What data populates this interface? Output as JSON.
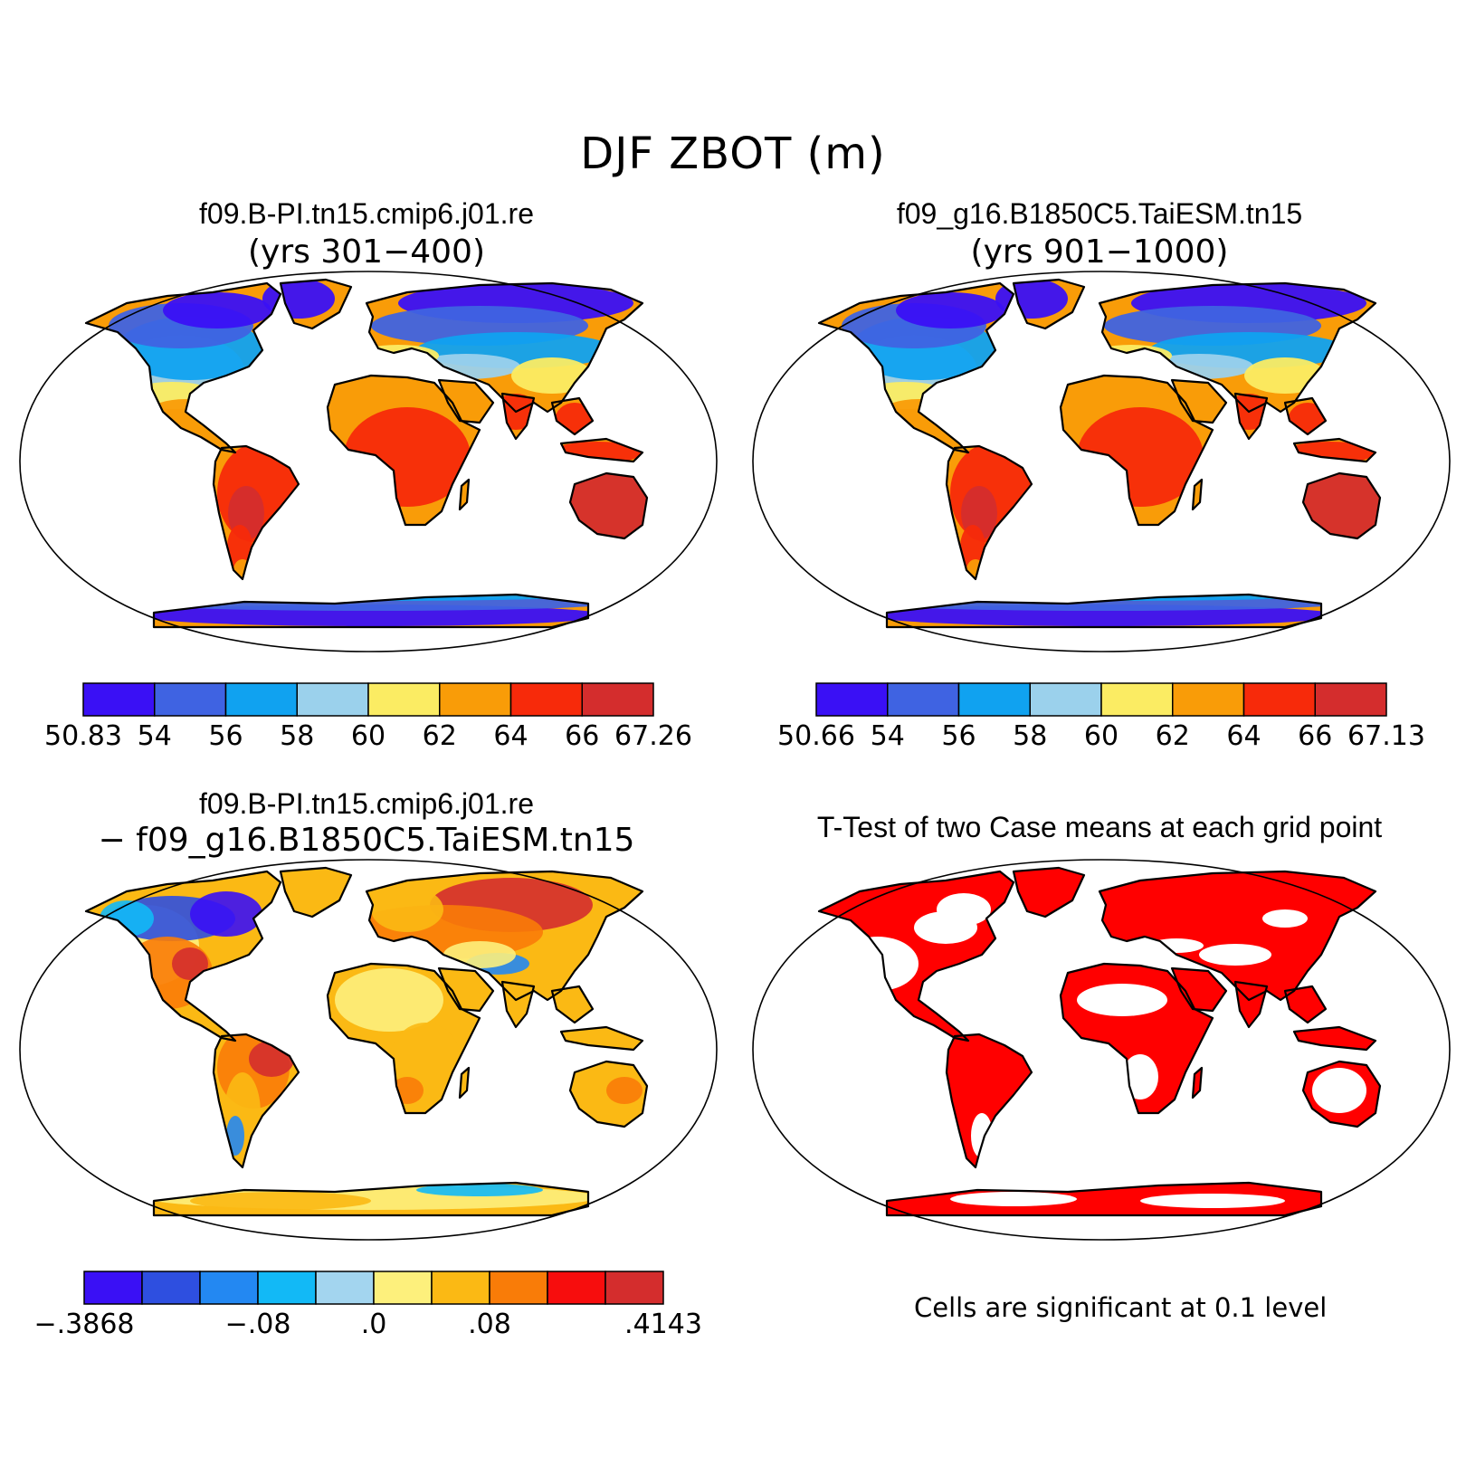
{
  "title": "DJF ZBOT (m)",
  "panels": [
    {
      "id": "case1",
      "title_line1": "f09.B-PI.tn15.cmip6.j01.re",
      "title_line2": "(yrs 301−400)",
      "colorbar": {
        "colors": [
          "#3a10f5",
          "#3f63e2",
          "#10a2f0",
          "#9bd1ec",
          "#fbec63",
          "#f99c08",
          "#f72a0a",
          "#d42d2d"
        ],
        "labels": [
          "50.83",
          "54",
          "56",
          "58",
          "60",
          "62",
          "64",
          "66",
          "67.26"
        ]
      }
    },
    {
      "id": "case2",
      "title_line1": "f09_g16.B1850C5.TaiESM.tn15",
      "title_line2": "(yrs 901−1000)",
      "colorbar": {
        "colors": [
          "#3a10f5",
          "#3f63e2",
          "#10a2f0",
          "#9bd1ec",
          "#fbec63",
          "#f99c08",
          "#f72a0a",
          "#d42d2d"
        ],
        "labels": [
          "50.66",
          "54",
          "56",
          "58",
          "60",
          "62",
          "64",
          "66",
          "67.13"
        ]
      }
    },
    {
      "id": "diff",
      "title_line1": "f09.B-PI.tn15.cmip6.j01.re",
      "title_line2": "− f09_g16.B1850C5.TaiESM.tn15",
      "colorbar": {
        "colors": [
          "#3a10f5",
          "#2e4fe0",
          "#2388f2",
          "#12b9f6",
          "#a3d5ef",
          "#fdf07c",
          "#fbb914",
          "#f97c08",
          "#f70d0d",
          "#d42d2d"
        ],
        "labels": [
          "−.3868",
          "−.08",
          ".0",
          ".08",
          ".4143"
        ]
      }
    },
    {
      "id": "ttest",
      "title_line1": "T-Test of two Case means at each grid point",
      "note": "Cells are significant at 0.1 level",
      "sig_color": "#ff0000"
    }
  ]
}
